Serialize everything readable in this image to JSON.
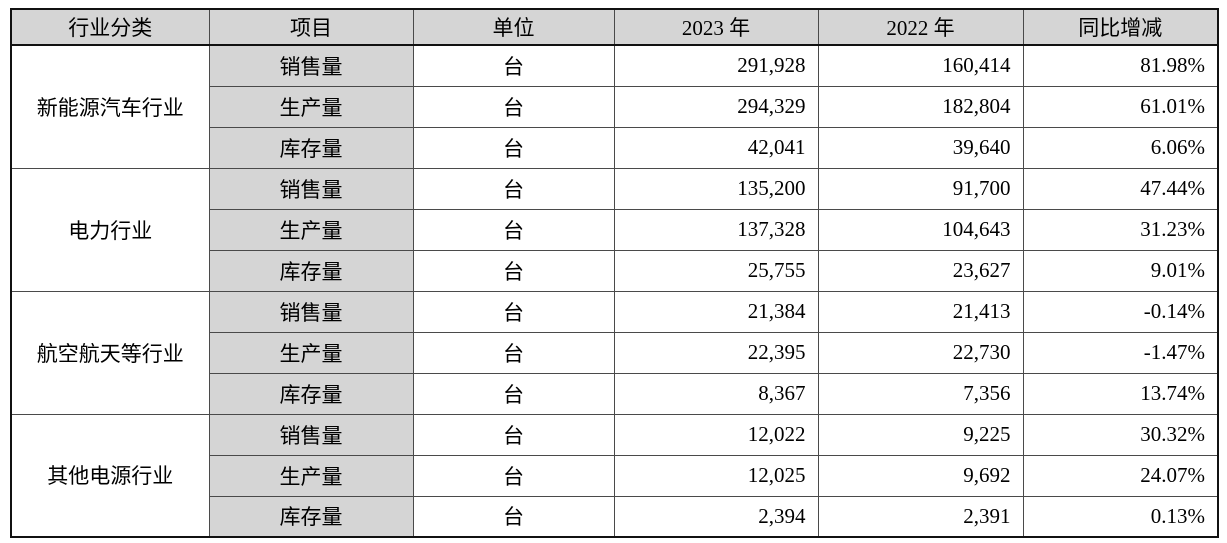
{
  "colors": {
    "header_bg": "#d5d5d5",
    "item_bg": "#d5d5d5",
    "border_inner": "#4a4a4a",
    "border_outer": "#111111"
  },
  "table": {
    "headers": [
      "行业分类",
      "项目",
      "单位",
      "2023 年",
      "2022 年",
      "同比增减"
    ],
    "groups": [
      {
        "industry": "新能源汽车行业",
        "rows": [
          {
            "item": "销售量",
            "unit": "台",
            "y2023": "291,928",
            "y2022": "160,414",
            "yoy": "81.98%"
          },
          {
            "item": "生产量",
            "unit": "台",
            "y2023": "294,329",
            "y2022": "182,804",
            "yoy": "61.01%"
          },
          {
            "item": "库存量",
            "unit": "台",
            "y2023": "42,041",
            "y2022": "39,640",
            "yoy": "6.06%"
          }
        ]
      },
      {
        "industry": "电力行业",
        "rows": [
          {
            "item": "销售量",
            "unit": "台",
            "y2023": "135,200",
            "y2022": "91,700",
            "yoy": "47.44%"
          },
          {
            "item": "生产量",
            "unit": "台",
            "y2023": "137,328",
            "y2022": "104,643",
            "yoy": "31.23%"
          },
          {
            "item": "库存量",
            "unit": "台",
            "y2023": "25,755",
            "y2022": "23,627",
            "yoy": "9.01%"
          }
        ]
      },
      {
        "industry": "航空航天等行业",
        "rows": [
          {
            "item": "销售量",
            "unit": "台",
            "y2023": "21,384",
            "y2022": "21,413",
            "yoy": "-0.14%"
          },
          {
            "item": "生产量",
            "unit": "台",
            "y2023": "22,395",
            "y2022": "22,730",
            "yoy": "-1.47%"
          },
          {
            "item": "库存量",
            "unit": "台",
            "y2023": "8,367",
            "y2022": "7,356",
            "yoy": "13.74%"
          }
        ]
      },
      {
        "industry": "其他电源行业",
        "rows": [
          {
            "item": "销售量",
            "unit": "台",
            "y2023": "12,022",
            "y2022": "9,225",
            "yoy": "30.32%"
          },
          {
            "item": "生产量",
            "unit": "台",
            "y2023": "12,025",
            "y2022": "9,692",
            "yoy": "24.07%"
          },
          {
            "item": "库存量",
            "unit": "台",
            "y2023": "2,394",
            "y2022": "2,391",
            "yoy": "0.13%"
          }
        ]
      }
    ]
  }
}
